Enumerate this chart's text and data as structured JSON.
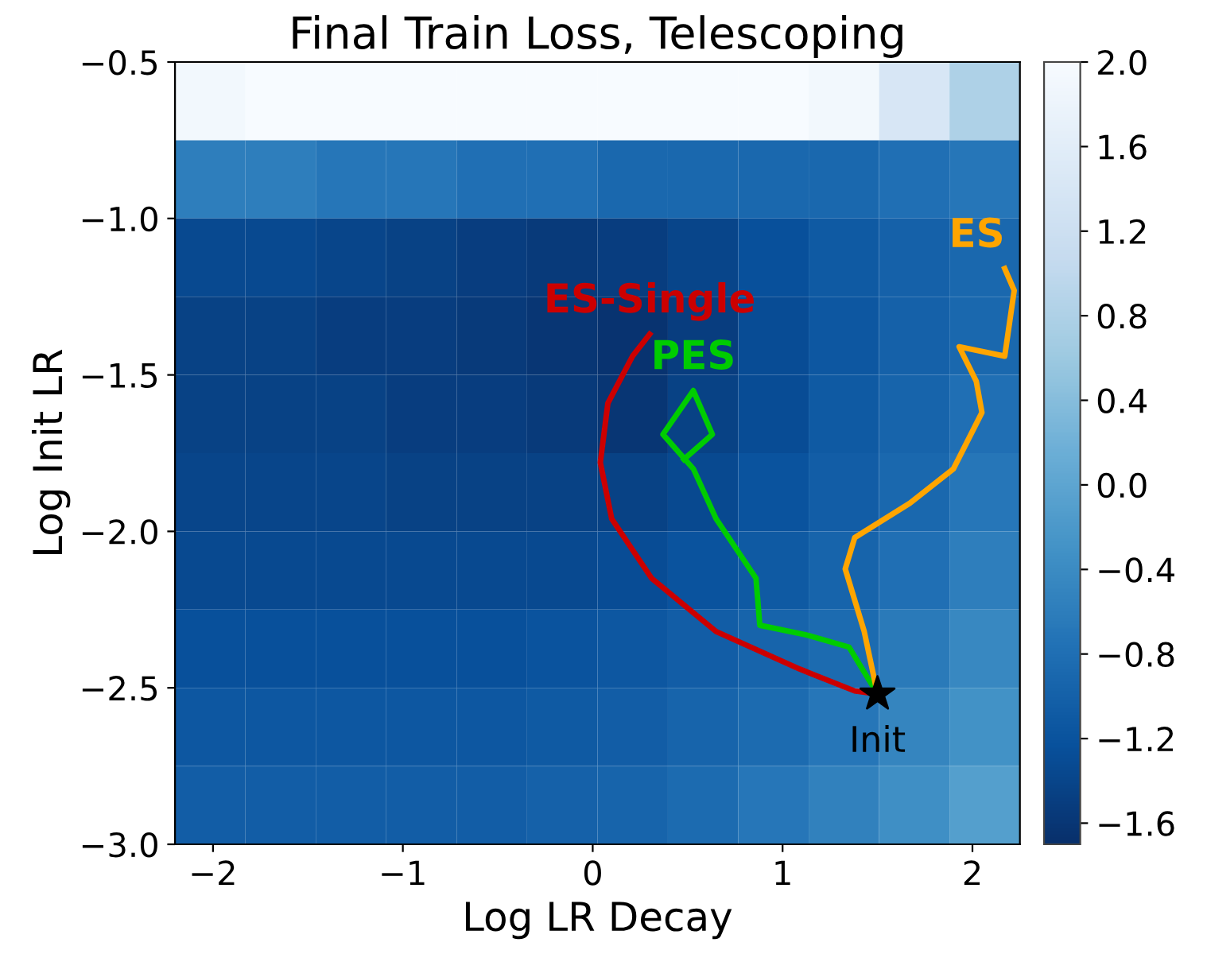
{
  "chart_data": {
    "type": "heatmap",
    "title": "Final Train Loss, Telescoping",
    "xlabel": "Log LR Decay",
    "ylabel": "Log Init LR",
    "xlim": [
      -2.2,
      2.25
    ],
    "ylim": [
      -3.0,
      -0.5
    ],
    "xticks": [
      -2,
      -1,
      0,
      1,
      2
    ],
    "yticks": [
      {
        "value": -3,
        "label": "−3.0"
      },
      -2.5,
      {
        "value": -2,
        "label": "−2.0"
      },
      -1.5,
      {
        "value": -1,
        "label": "−1.0"
      },
      -0.5
    ],
    "clim": [
      -1.7,
      2.0
    ],
    "cticks": [
      -1.6,
      -1.2,
      -0.8,
      -0.4,
      {
        "value": 0,
        "label": "0.0"
      },
      0.4,
      0.8,
      1.2,
      1.6,
      {
        "value": 2,
        "label": "2.0"
      }
    ],
    "cells": [
      [
        1.9,
        2.0,
        2.0,
        2.0,
        2.0,
        2.0,
        2.0,
        2.0,
        2.0,
        1.9,
        1.4,
        0.8
      ],
      [
        -0.6,
        -0.6,
        -0.7,
        -0.7,
        -0.8,
        -0.8,
        -0.9,
        -0.9,
        -0.9,
        -0.9,
        -0.8,
        -0.7
      ],
      [
        -1.35,
        -1.35,
        -1.4,
        -1.45,
        -1.5,
        -1.55,
        -1.5,
        -1.4,
        -1.25,
        -1.1,
        -1.0,
        -0.9
      ],
      [
        -1.45,
        -1.45,
        -1.5,
        -1.5,
        -1.55,
        -1.6,
        -1.65,
        -1.5,
        -1.3,
        -1.15,
        -1.0,
        -0.9
      ],
      [
        -1.45,
        -1.45,
        -1.45,
        -1.5,
        -1.5,
        -1.55,
        -1.6,
        -1.45,
        -1.3,
        -1.1,
        -0.95,
        -0.8
      ],
      [
        -1.4,
        -1.4,
        -1.4,
        -1.45,
        -1.45,
        -1.45,
        -1.45,
        -1.35,
        -1.2,
        -1.05,
        -0.9,
        -0.7
      ],
      [
        -1.35,
        -1.35,
        -1.35,
        -1.35,
        -1.35,
        -1.35,
        -1.3,
        -1.2,
        -1.1,
        -0.95,
        -0.8,
        -0.6
      ],
      [
        -1.25,
        -1.25,
        -1.25,
        -1.25,
        -1.25,
        -1.2,
        -1.15,
        -1.05,
        -0.95,
        -0.85,
        -0.65,
        -0.45
      ],
      [
        -1.15,
        -1.15,
        -1.15,
        -1.15,
        -1.15,
        -1.1,
        -1.05,
        -0.95,
        -0.85,
        -0.7,
        -0.5,
        -0.3
      ],
      [
        -1.05,
        -1.05,
        -1.05,
        -1.05,
        -1.05,
        -1.0,
        -0.95,
        -0.85,
        -0.7,
        -0.55,
        -0.35,
        -0.1
      ]
    ],
    "series": [
      {
        "type": "line",
        "name": "ES-Single",
        "color": "#cc0000",
        "x": [
          1.5,
          1.38,
          1.09,
          0.65,
          0.31,
          0.1,
          0.04,
          0.08,
          0.21,
          0.3
        ],
        "values": [
          -2.52,
          -2.51,
          -2.44,
          -2.32,
          -2.15,
          -1.96,
          -1.78,
          -1.59,
          -1.44,
          -1.37
        ]
      },
      {
        "type": "line",
        "name": "PES",
        "color": "#00cc00",
        "x": [
          1.5,
          1.35,
          1.12,
          0.88,
          0.86,
          0.65,
          0.53,
          0.37,
          0.53,
          0.63,
          0.48
        ],
        "values": [
          -2.52,
          -2.37,
          -2.33,
          -2.3,
          -2.15,
          -1.96,
          -1.8,
          -1.69,
          -1.55,
          -1.69,
          -1.77
        ]
      },
      {
        "type": "line",
        "name": "ES",
        "color": "#ffa500",
        "x": [
          1.5,
          1.43,
          1.33,
          1.38,
          1.67,
          1.9,
          2.05,
          2.02,
          1.93,
          2.17,
          2.22,
          2.17
        ],
        "values": [
          -2.52,
          -2.32,
          -2.12,
          -2.02,
          -1.91,
          -1.8,
          -1.62,
          -1.52,
          -1.41,
          -1.44,
          -1.23,
          -1.16
        ]
      },
      {
        "type": "scatter",
        "name": "Init",
        "color": "#000000",
        "marker": "star",
        "x": [
          1.5
        ],
        "values": [
          -2.52
        ]
      }
    ]
  }
}
